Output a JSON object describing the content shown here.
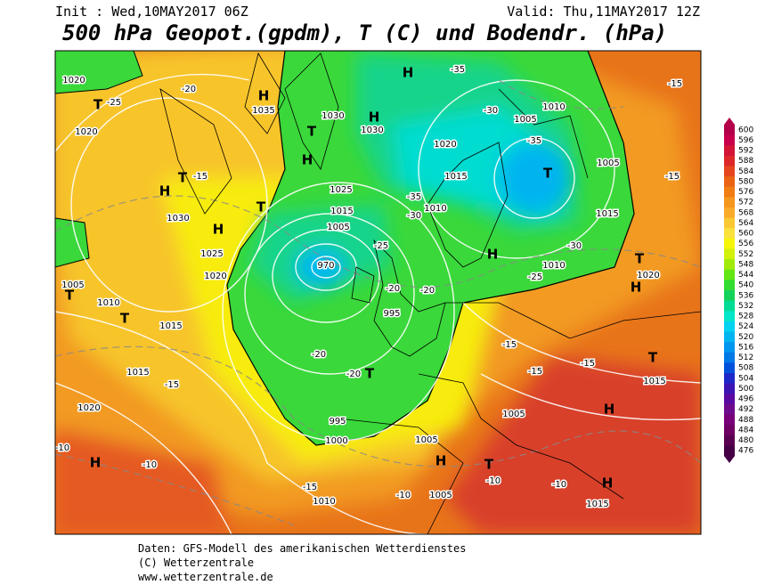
{
  "header": {
    "init": "Init : Wed,10MAY2017 06Z",
    "valid": "Valid: Thu,11MAY2017 12Z",
    "title": "500 hPa Geopot.(gpdm), T (C) und Bodendr. (hPa)"
  },
  "legend": {
    "levels": [
      {
        "value": 600,
        "color": "#b4004b"
      },
      {
        "value": 596,
        "color": "#c8004b"
      },
      {
        "value": 592,
        "color": "#d21437"
      },
      {
        "value": 588,
        "color": "#dc2828"
      },
      {
        "value": 584,
        "color": "#e6461e"
      },
      {
        "value": 580,
        "color": "#eb6414"
      },
      {
        "value": 576,
        "color": "#f07d14"
      },
      {
        "value": 572,
        "color": "#f5961e"
      },
      {
        "value": 568,
        "color": "#faaa28"
      },
      {
        "value": 564,
        "color": "#fac832"
      },
      {
        "value": 560,
        "color": "#fae13c"
      },
      {
        "value": 556,
        "color": "#f5f50a"
      },
      {
        "value": 552,
        "color": "#d2f00a"
      },
      {
        "value": 548,
        "color": "#a0eb0a"
      },
      {
        "value": 544,
        "color": "#64e614"
      },
      {
        "value": 540,
        "color": "#32dc32"
      },
      {
        "value": 536,
        "color": "#14d25a"
      },
      {
        "value": 532,
        "color": "#00dc96"
      },
      {
        "value": 528,
        "color": "#00e6c8"
      },
      {
        "value": 524,
        "color": "#00d2f0"
      },
      {
        "value": 520,
        "color": "#00b4f0"
      },
      {
        "value": 516,
        "color": "#0096f0"
      },
      {
        "value": 512,
        "color": "#0078e6"
      },
      {
        "value": 508,
        "color": "#0050dc"
      },
      {
        "value": 504,
        "color": "#1e28c8"
      },
      {
        "value": 500,
        "color": "#3c14b4"
      },
      {
        "value": 496,
        "color": "#5a0aa0"
      },
      {
        "value": 492,
        "color": "#6e0a8c"
      },
      {
        "value": 488,
        "color": "#780078"
      },
      {
        "value": 484,
        "color": "#6e0064"
      },
      {
        "value": 480,
        "color": "#5a0050"
      },
      {
        "value": 476,
        "color": "#460046"
      }
    ]
  },
  "map_labels": [
    "1020",
    "T",
    "-25",
    "1020",
    "H",
    "T",
    "-15",
    "1030",
    "H",
    "1025",
    "1020",
    "T",
    "1005",
    "1010",
    "T",
    "1015",
    "1015",
    "-15",
    "1020",
    "H",
    "-10",
    "-10",
    "H",
    "1035",
    "-20",
    "T",
    "1030",
    "H",
    "1030",
    "H",
    "1025",
    "T",
    "1015",
    "1005",
    "970",
    "995",
    "T",
    "-20",
    "-20",
    "995",
    "1000",
    "H",
    "-35",
    "-30",
    "1005",
    "-35",
    "T",
    "1010",
    "1005",
    "1020",
    "1015",
    "1010",
    "H",
    "-30",
    "1010",
    "-25",
    "T",
    "H",
    "1020",
    "T",
    "1015",
    "H",
    "1005",
    "T",
    "H",
    "1005",
    "-10",
    "H",
    "1015",
    "-10",
    "1010",
    "-15",
    "1005",
    "-10",
    "-15",
    "-15",
    "-15",
    "1015",
    "-15",
    "-15",
    "-20",
    "-20",
    "-25",
    "-35",
    "-30"
  ],
  "footer": {
    "line1": "Daten: GFS-Modell des amerikanischen Wetterdienstes",
    "line2": "(C) Wetterzentrale",
    "line3": "www.wetterzentrale.de"
  }
}
